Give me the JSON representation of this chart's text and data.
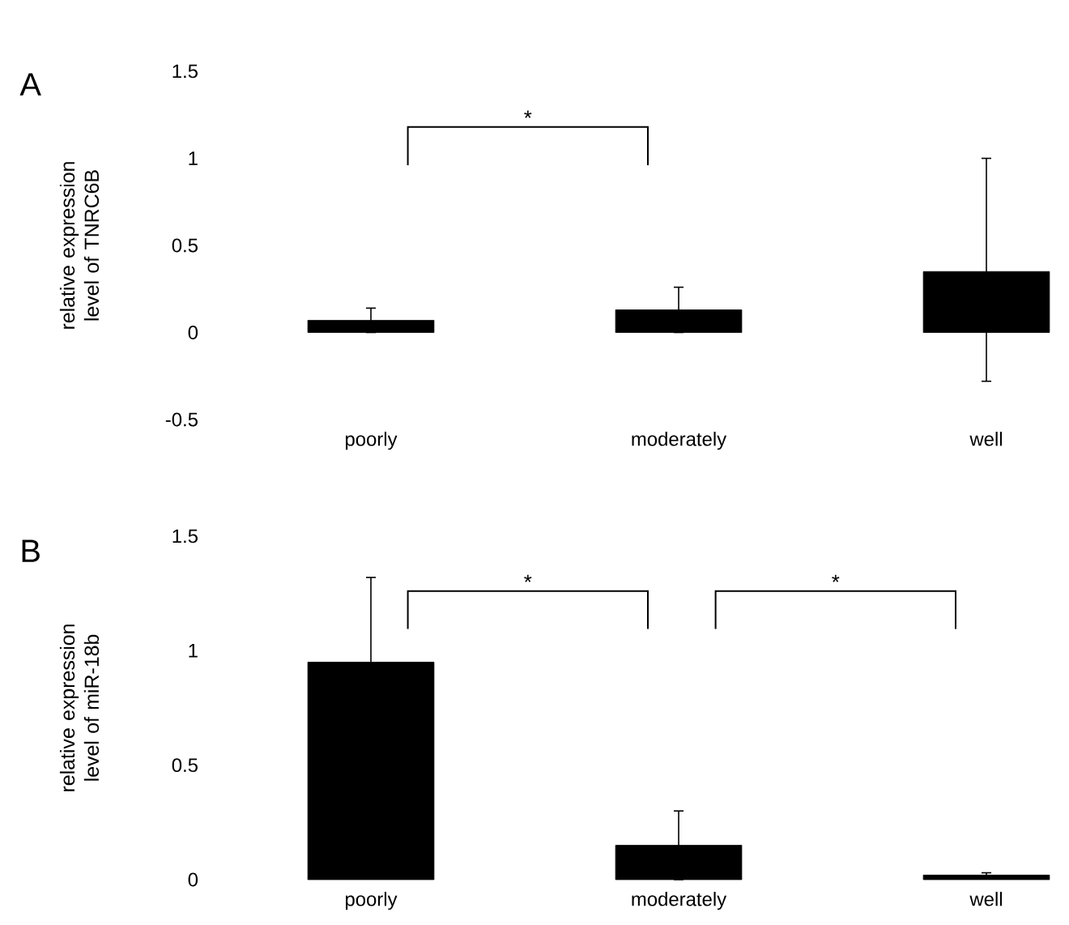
{
  "chart_data": [
    {
      "type": "bar",
      "ylabel": "relative expression level of TNRC6B",
      "categories": [
        "poorly",
        "moderately",
        "well"
      ],
      "values": [
        0.07,
        0.13,
        0.35
      ],
      "errors": [
        0.07,
        0.13,
        [
          -0.28,
          1.0
        ]
      ],
      "color": "#000000",
      "ylim": [
        -0.5,
        1.5
      ],
      "yticks": [
        -0.5,
        0,
        0.5,
        1,
        1.5
      ],
      "annotations": [
        "A",
        "*"
      ]
    },
    {
      "type": "bar",
      "ylabel": "relative expression level of miR-18b",
      "categories": [
        "poorly",
        "moderately",
        "well"
      ],
      "values": [
        0.95,
        0.15,
        0.02
      ],
      "errors": [
        0.37,
        0.15,
        0.01
      ],
      "color": "#000000",
      "ylim": [
        0,
        1.5
      ],
      "yticks": [
        0,
        0.5,
        1,
        1.5
      ],
      "annotations": [
        "B",
        "*",
        "*"
      ]
    }
  ]
}
